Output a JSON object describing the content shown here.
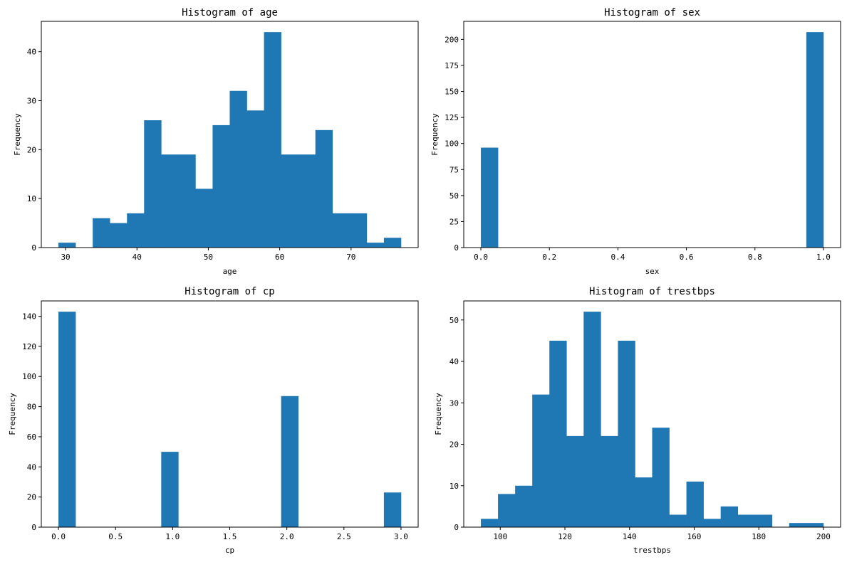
{
  "chart_data": [
    {
      "type": "histogram",
      "title": "Histogram of age",
      "xlabel": "age",
      "ylabel": "Frequency",
      "bin_start": 29,
      "bin_width": 2.4,
      "counts": [
        1,
        0,
        6,
        5,
        7,
        26,
        19,
        19,
        12,
        25,
        32,
        28,
        44,
        19,
        19,
        24,
        7,
        7,
        1,
        2
      ],
      "xlim": [
        26.6,
        79.4
      ],
      "ylim": [
        0,
        46.2
      ],
      "xticks": [
        30,
        40,
        50,
        60,
        70
      ],
      "yticks": [
        0,
        10,
        20,
        30,
        40
      ],
      "bar_color": "#1f77b4"
    },
    {
      "type": "histogram",
      "title": "Histogram of sex",
      "xlabel": "sex",
      "ylabel": "Frequency",
      "bin_start": 0,
      "bin_width": 0.05,
      "counts": [
        96,
        0,
        0,
        0,
        0,
        0,
        0,
        0,
        0,
        0,
        0,
        0,
        0,
        0,
        0,
        0,
        0,
        0,
        0,
        207
      ],
      "xlim": [
        -0.05,
        1.05
      ],
      "ylim": [
        0,
        217.35
      ],
      "xticks": [
        0.0,
        0.2,
        0.4,
        0.6,
        0.8,
        1.0
      ],
      "xtick_labels": [
        "0.0",
        "0.2",
        "0.4",
        "0.6",
        "0.8",
        "1.0"
      ],
      "yticks": [
        0,
        25,
        50,
        75,
        100,
        125,
        150,
        175,
        200
      ],
      "bar_color": "#1f77b4"
    },
    {
      "type": "histogram",
      "title": "Histogram of cp",
      "xlabel": "cp",
      "ylabel": "Frequency",
      "bin_start": 0,
      "bin_width": 0.15,
      "counts": [
        143,
        0,
        0,
        0,
        0,
        0,
        50,
        0,
        0,
        0,
        0,
        0,
        0,
        87,
        0,
        0,
        0,
        0,
        0,
        23
      ],
      "xlim": [
        -0.15,
        3.15
      ],
      "ylim": [
        0,
        150.15
      ],
      "xticks": [
        0.0,
        0.5,
        1.0,
        1.5,
        2.0,
        2.5,
        3.0
      ],
      "xtick_labels": [
        "0.0",
        "0.5",
        "1.0",
        "1.5",
        "2.0",
        "2.5",
        "3.0"
      ],
      "yticks": [
        0,
        20,
        40,
        60,
        80,
        100,
        120,
        140
      ],
      "bar_color": "#1f77b4"
    },
    {
      "type": "histogram",
      "title": "Histogram of trestbps",
      "xlabel": "trestbps",
      "ylabel": "Frequency",
      "bin_start": 94,
      "bin_width": 5.3,
      "counts": [
        2,
        8,
        10,
        32,
        45,
        22,
        52,
        22,
        45,
        12,
        24,
        3,
        11,
        2,
        5,
        3,
        3,
        0,
        1,
        1
      ],
      "xlim": [
        88.7,
        205.3
      ],
      "ylim": [
        0,
        54.6
      ],
      "xticks": [
        100,
        120,
        140,
        160,
        180,
        200
      ],
      "yticks": [
        0,
        10,
        20,
        30,
        40,
        50
      ],
      "bar_color": "#1f77b4"
    }
  ]
}
